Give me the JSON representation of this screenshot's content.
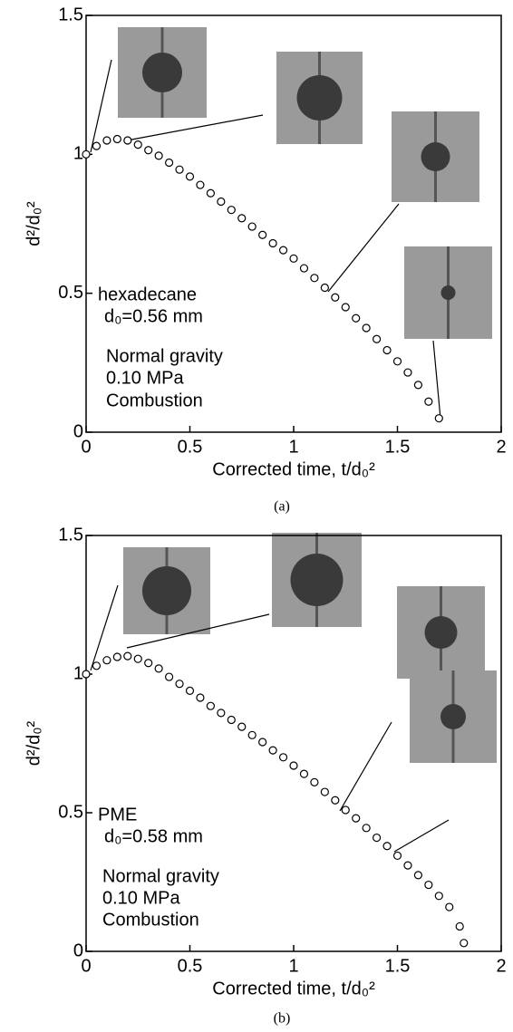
{
  "chart_data": [
    {
      "type": "scatter",
      "caption": "(a)",
      "xlabel": "Corrected time,  t/d₀²",
      "ylabel": "d²/d₀²",
      "annotations": [
        "hexadecane",
        "d₀=0.56 mm",
        "Normal gravity",
        "0.10 MPa",
        "Combustion"
      ],
      "color": "#000000",
      "x": [
        0,
        0.05,
        0.1,
        0.15,
        0.2,
        0.25,
        0.3,
        0.35,
        0.4,
        0.45,
        0.5,
        0.55,
        0.6,
        0.65,
        0.7,
        0.75,
        0.8,
        0.85,
        0.9,
        0.95,
        1.0,
        1.05,
        1.1,
        1.15,
        1.2,
        1.25,
        1.3,
        1.35,
        1.4,
        1.45,
        1.5,
        1.55,
        1.6,
        1.65,
        1.7
      ],
      "values": [
        1.0,
        1.03,
        1.05,
        1.055,
        1.05,
        1.035,
        1.015,
        0.995,
        0.97,
        0.945,
        0.92,
        0.89,
        0.86,
        0.83,
        0.8,
        0.77,
        0.74,
        0.71,
        0.68,
        0.655,
        0.625,
        0.59,
        0.555,
        0.52,
        0.485,
        0.45,
        0.41,
        0.375,
        0.335,
        0.295,
        0.255,
        0.215,
        0.17,
        0.11,
        0.05
      ],
      "xlim": [
        0,
        2
      ],
      "ylim": [
        0,
        1.5
      ],
      "xticks": [
        0,
        0.5,
        1,
        1.5,
        2
      ],
      "yticks": [
        0,
        0.5,
        1,
        1.5
      ]
    },
    {
      "type": "scatter",
      "caption": "(b)",
      "xlabel": "Corrected time,  t/d₀²",
      "ylabel": "d²/d₀²",
      "annotations": [
        "PME",
        "d₀=0.58 mm",
        "Normal gravity",
        "0.10 MPa",
        "Combustion"
      ],
      "color": "#000000",
      "x": [
        0,
        0.05,
        0.1,
        0.15,
        0.2,
        0.25,
        0.3,
        0.35,
        0.4,
        0.45,
        0.5,
        0.55,
        0.6,
        0.65,
        0.7,
        0.75,
        0.8,
        0.85,
        0.9,
        0.95,
        1.0,
        1.05,
        1.1,
        1.15,
        1.2,
        1.25,
        1.3,
        1.35,
        1.4,
        1.45,
        1.5,
        1.55,
        1.6,
        1.65,
        1.7,
        1.75,
        1.8,
        1.82
      ],
      "values": [
        1.0,
        1.03,
        1.05,
        1.062,
        1.065,
        1.055,
        1.04,
        1.02,
        0.99,
        0.965,
        0.94,
        0.915,
        0.885,
        0.86,
        0.835,
        0.81,
        0.78,
        0.755,
        0.725,
        0.7,
        0.67,
        0.64,
        0.61,
        0.575,
        0.545,
        0.51,
        0.48,
        0.445,
        0.41,
        0.38,
        0.345,
        0.31,
        0.275,
        0.24,
        0.2,
        0.16,
        0.09,
        0.03
      ],
      "xlim": [
        0,
        2
      ],
      "ylim": [
        0,
        1.5
      ],
      "xticks": [
        0,
        0.5,
        1,
        1.5,
        2
      ],
      "yticks": [
        0,
        0.5,
        1,
        1.5
      ]
    }
  ]
}
